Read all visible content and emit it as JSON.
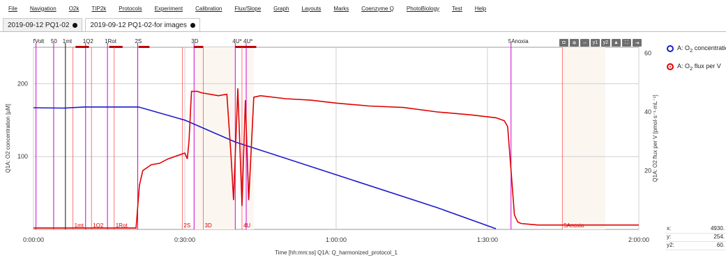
{
  "menu": [
    "File",
    "Navigation",
    "O2k",
    "TIP2k",
    "Protocols",
    "Experiment",
    "Calibration",
    "Flux/Slope",
    "Graph",
    "Layouts",
    "Marks",
    "Coenzyme Q",
    "PhotoBiology",
    "Test",
    "Help"
  ],
  "tabs": [
    {
      "label": "2019-09-12 PQ1-02",
      "active": false
    },
    {
      "label": "2019-09-12 PQ1-02-for images",
      "active": true
    }
  ],
  "toolbar_icons": [
    "camera-icon",
    "gear-icon",
    "horizontal-zoom-icon",
    "y1-axis-icon",
    "y2-axis-icon",
    "chart-type-icon",
    "fullscreen-icon",
    "export-icon"
  ],
  "legend": [
    {
      "prefix": "A: O",
      "sub": "2",
      "suffix": " concentration",
      "color": "#1a1acc",
      "filled": false
    },
    {
      "prefix": "A: O",
      "sub": "2",
      "suffix": " flux per V",
      "color": "#e00000",
      "filled": true
    }
  ],
  "readout": [
    {
      "label": "x:",
      "value": "4930."
    },
    {
      "label": "y:",
      "value": "254."
    },
    {
      "label": "y2:",
      "value": "60."
    }
  ],
  "chart_data": {
    "type": "line",
    "xlabel": "Time [hh:mm:ss] Q1A: Q_harmonized_protocol_1",
    "ylabel": "Q1A: O2 concentration [µM]",
    "y2label": "Q1A: O2 flux per V [pmol·s⁻¹·mL⁻¹]",
    "xlim": [
      0,
      7200
    ],
    "ylim": [
      0,
      250
    ],
    "y2lim": [
      0,
      62
    ],
    "x_ticks": [
      {
        "v": 0,
        "label": "0:00:00"
      },
      {
        "v": 1800,
        "label": "0:30:00"
      },
      {
        "v": 3600,
        "label": "1:00:00"
      },
      {
        "v": 5400,
        "label": "1:30:00"
      },
      {
        "v": 7200,
        "label": "2:00:00"
      }
    ],
    "y_ticks": [
      100,
      200
    ],
    "y2_ticks": [
      20,
      40,
      60
    ],
    "events_top": [
      {
        "t": 30,
        "label": "fVolt"
      },
      {
        "t": 240,
        "label": "50"
      },
      {
        "t": 380,
        "label": "1mt"
      },
      {
        "t": 620,
        "label": "1Q2"
      },
      {
        "t": 880,
        "label": "1Rot"
      },
      {
        "t": 1240,
        "label": "2S"
      },
      {
        "t": 1910,
        "label": "3D"
      },
      {
        "t": 2400,
        "label": "4U*"
      },
      {
        "t": 2530,
        "label": "4U*"
      },
      {
        "t": 5680,
        "label": "5Anoxia"
      }
    ],
    "events_bottom": [
      {
        "t": 470,
        "label": "1mt"
      },
      {
        "t": 690,
        "label": "1Q2"
      },
      {
        "t": 960,
        "label": "1Rot"
      },
      {
        "t": 1770,
        "label": "2S"
      },
      {
        "t": 2020,
        "label": "3D"
      },
      {
        "t": 2480,
        "label": "4U"
      },
      {
        "t": 6290,
        "label": "5Anoxia"
      }
    ],
    "series": [
      {
        "name": "A: O2 concentration",
        "axis": "y",
        "color": "#1a1acc",
        "x": [
          0,
          360,
          600,
          1250,
          1800,
          2400,
          3600,
          4800,
          5500
        ],
        "values": [
          167,
          166.5,
          168,
          168,
          150,
          120,
          75,
          30,
          1
        ]
      },
      {
        "name": "A: O2 flux per V",
        "axis": "y2",
        "color": "#e00000",
        "x": [
          0,
          300,
          1220,
          1260,
          1300,
          1400,
          1500,
          1600,
          1700,
          1800,
          1830,
          1850,
          1880,
          1950,
          2000,
          2200,
          2300,
          2350,
          2380,
          2430,
          2480,
          2520,
          2560,
          2620,
          2700,
          3000,
          3300,
          3600,
          4000,
          4400,
          4800,
          5200,
          5500,
          5600,
          5640,
          5680,
          5720,
          5760,
          5800,
          6000,
          6500,
          7200
        ],
        "values": [
          0.5,
          0.5,
          0.5,
          15,
          20,
          22,
          22.5,
          24,
          25,
          26,
          24,
          30,
          47,
          47,
          46.5,
          45.5,
          46,
          25,
          10,
          48,
          8,
          44,
          10,
          45,
          45.5,
          44.5,
          44,
          43,
          42,
          41.5,
          40,
          39,
          38,
          37,
          35,
          20,
          5,
          2.5,
          2,
          1.5,
          1.5,
          1.5
        ]
      }
    ]
  }
}
